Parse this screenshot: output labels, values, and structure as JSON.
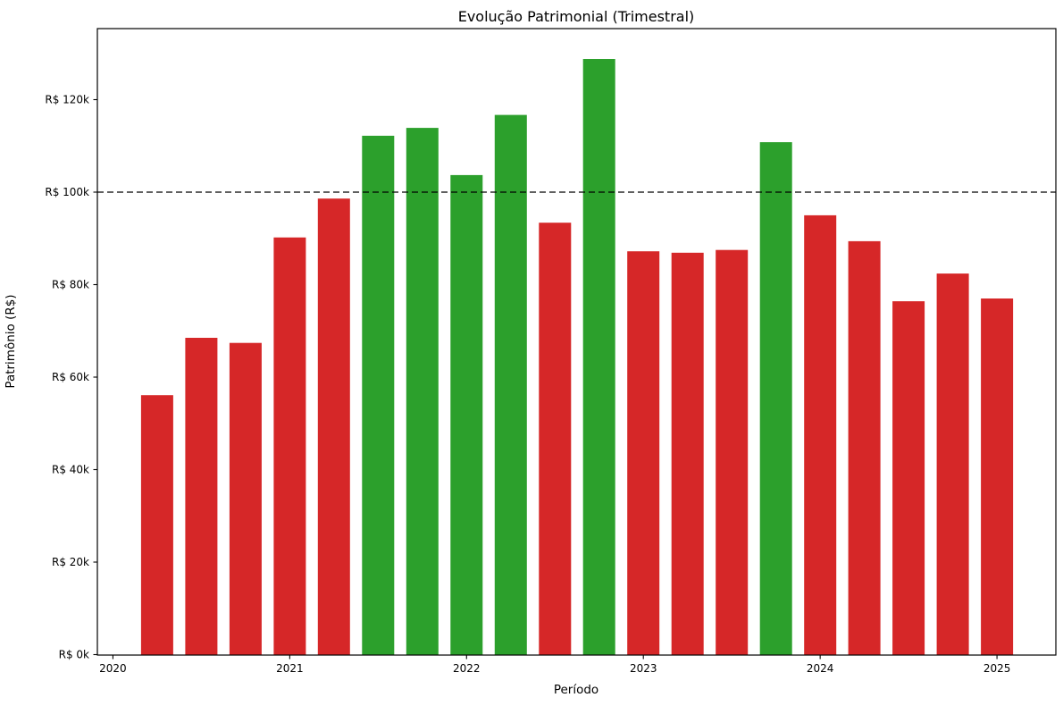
{
  "chart_data": {
    "type": "bar",
    "title": "Evolução Patrimonial (Trimestral)",
    "xlabel": "Período",
    "ylabel": "Patrimônio (R$)",
    "value_unit": "R$ thousand",
    "x_tick_labels": [
      "2020",
      "2021",
      "2022",
      "2023",
      "2024",
      "2025"
    ],
    "x_tick_years": [
      2020,
      2021,
      2022,
      2023,
      2024,
      2025
    ],
    "y_ticks": [
      {
        "value": 0,
        "label": "R$ 0k"
      },
      {
        "value": 20,
        "label": "R$ 20k"
      },
      {
        "value": 40,
        "label": "R$ 40k"
      },
      {
        "value": 60,
        "label": "R$ 60k"
      },
      {
        "value": 80,
        "label": "R$ 80k"
      },
      {
        "value": 100,
        "label": "R$ 100k"
      },
      {
        "value": 120,
        "label": "R$ 120k"
      }
    ],
    "reference_line": {
      "value": 100,
      "style": "dashed",
      "color": "#000000"
    },
    "bar_colors": {
      "above_threshold": "#2ca02c",
      "below_threshold": "#d62728"
    },
    "xlim": [
      2019.912,
      2025.333
    ],
    "ylim": [
      0,
      135.5
    ],
    "grid": false,
    "legend": null,
    "bars": [
      {
        "period": "2020-Q2",
        "x": 2020.25,
        "value": 56.1,
        "color": "#d62728"
      },
      {
        "period": "2020-Q3",
        "x": 2020.5,
        "value": 68.5,
        "color": "#d62728"
      },
      {
        "period": "2020-Q4",
        "x": 2020.75,
        "value": 67.4,
        "color": "#d62728"
      },
      {
        "period": "2021-Q1",
        "x": 2021.0,
        "value": 90.2,
        "color": "#d62728"
      },
      {
        "period": "2021-Q2",
        "x": 2021.25,
        "value": 98.6,
        "color": "#d62728"
      },
      {
        "period": "2021-Q3",
        "x": 2021.5,
        "value": 112.2,
        "color": "#2ca02c"
      },
      {
        "period": "2021-Q4",
        "x": 2021.75,
        "value": 113.9,
        "color": "#2ca02c"
      },
      {
        "period": "2022-Q1",
        "x": 2022.0,
        "value": 103.7,
        "color": "#2ca02c"
      },
      {
        "period": "2022-Q2",
        "x": 2022.25,
        "value": 116.7,
        "color": "#2ca02c"
      },
      {
        "period": "2022-Q3",
        "x": 2022.5,
        "value": 93.4,
        "color": "#d62728"
      },
      {
        "period": "2022-Q4",
        "x": 2022.75,
        "value": 128.8,
        "color": "#2ca02c"
      },
      {
        "period": "2023-Q1",
        "x": 2023.0,
        "value": 87.2,
        "color": "#d62728"
      },
      {
        "period": "2023-Q2",
        "x": 2023.25,
        "value": 86.9,
        "color": "#d62728"
      },
      {
        "period": "2023-Q3",
        "x": 2023.5,
        "value": 87.5,
        "color": "#d62728"
      },
      {
        "period": "2023-Q4",
        "x": 2023.75,
        "value": 110.8,
        "color": "#2ca02c"
      },
      {
        "period": "2024-Q1",
        "x": 2024.0,
        "value": 95.0,
        "color": "#d62728"
      },
      {
        "period": "2024-Q2",
        "x": 2024.25,
        "value": 89.4,
        "color": "#d62728"
      },
      {
        "period": "2024-Q3",
        "x": 2024.5,
        "value": 76.4,
        "color": "#d62728"
      },
      {
        "period": "2024-Q4",
        "x": 2024.75,
        "value": 82.4,
        "color": "#d62728"
      },
      {
        "period": "2025-Q1",
        "x": 2025.0,
        "value": 77.0,
        "color": "#d62728"
      }
    ]
  }
}
